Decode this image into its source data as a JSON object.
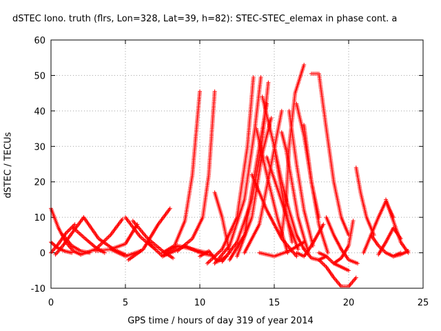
{
  "chart_data": {
    "type": "scatter",
    "title": "dSTEC Iono. truth (flrs, Lon=328, Lat=39, h=82): STEC-STEC_elemax in phase cont. a",
    "xlabel": "GPS time / hours of day 319 of year 2014",
    "ylabel": "dSTEC  / TECUs",
    "xlim": [
      0,
      25
    ],
    "ylim": [
      -10,
      60
    ],
    "xticks": [
      "0",
      "5",
      "10",
      "15",
      "20",
      "25"
    ],
    "yticks": [
      "-10",
      "0",
      "10",
      "20",
      "30",
      "40",
      "50",
      "60"
    ],
    "grid": true,
    "marker": "+",
    "color": "#ff0000",
    "series": [
      {
        "x": [
          0.0,
          0.5,
          1.0,
          1.5,
          2.0
        ],
        "y": [
          12.5,
          7,
          3,
          0.5,
          -0.5
        ]
      },
      {
        "x": [
          0.0,
          0.4,
          0.9,
          1.4
        ],
        "y": [
          3,
          1.5,
          0.5,
          0
        ]
      },
      {
        "x": [
          0.0,
          0.5,
          1.0,
          1.6
        ],
        "y": [
          0,
          2.5,
          5.5,
          8
        ]
      },
      {
        "x": [
          0.3,
          0.8,
          1.4,
          2.2
        ],
        "y": [
          -0.5,
          2,
          5.5,
          10
        ]
      },
      {
        "x": [
          0.8,
          1.4,
          2.0,
          2.6
        ],
        "y": [
          5,
          2,
          0.5,
          0
        ]
      },
      {
        "x": [
          1.5,
          2.3,
          3.0,
          3.6
        ],
        "y": [
          7,
          4,
          1.5,
          0
        ]
      },
      {
        "x": [
          2.0,
          3.0,
          4.0,
          4.8
        ],
        "y": [
          -0.5,
          1,
          5,
          9.5
        ]
      },
      {
        "x": [
          2.2,
          3.2,
          4.2,
          5.0
        ],
        "y": [
          10,
          4,
          1,
          -0.5
        ]
      },
      {
        "x": [
          3.0,
          4.0,
          5.0,
          5.8
        ],
        "y": [
          0.5,
          1,
          2.5,
          8
        ]
      },
      {
        "x": [
          4.0,
          5.0,
          6.0
        ],
        "y": [
          1,
          -1,
          0.5
        ]
      },
      {
        "x": [
          5.0,
          6.0,
          7.0
        ],
        "y": [
          10,
          4.5,
          1
        ]
      },
      {
        "x": [
          5.2,
          6.2,
          7.2,
          8.0
        ],
        "y": [
          -2,
          1,
          8,
          12.5
        ]
      },
      {
        "x": [
          5.5,
          6.5,
          7.5,
          8.2
        ],
        "y": [
          9,
          4,
          0.5,
          -1.5
        ]
      },
      {
        "x": [
          6.5,
          7.5,
          8.3,
          9.0
        ],
        "y": [
          3,
          -1,
          0.5,
          2
        ]
      },
      {
        "x": [
          7.5,
          8.3,
          9.0,
          9.5,
          10.0
        ],
        "y": [
          0,
          2,
          9,
          22,
          45.5
        ]
      },
      {
        "x": [
          7.5,
          8.5,
          9.5,
          10.5
        ],
        "y": [
          -1,
          2,
          1,
          0
        ]
      },
      {
        "x": [
          8.5,
          9.5,
          10.2,
          10.6,
          11.0
        ],
        "y": [
          0.5,
          4,
          10,
          22,
          45.5
        ]
      },
      {
        "x": [
          9.0,
          10.0,
          11.0
        ],
        "y": [
          2,
          0,
          -1
        ]
      },
      {
        "x": [
          10.0,
          10.6,
          11.2,
          11.8
        ],
        "y": [
          -1,
          0.5,
          -2.5,
          -1
        ]
      },
      {
        "x": [
          11.0,
          11.5,
          12.0
        ],
        "y": [
          17,
          10,
          0
        ]
      },
      {
        "x": [
          10.5,
          11.5,
          12.5,
          13.2,
          13.6
        ],
        "y": [
          -3,
          1,
          10,
          30,
          49.5
        ]
      },
      {
        "x": [
          11.0,
          12.0,
          13.0,
          13.7,
          14.1
        ],
        "y": [
          -3,
          2,
          15,
          35,
          49.5
        ]
      },
      {
        "x": [
          11.5,
          12.5,
          13.5,
          14.2,
          14.6
        ],
        "y": [
          -2.5,
          3,
          15,
          32,
          48
        ]
      },
      {
        "x": [
          12.0,
          13.0,
          13.8,
          14.5
        ],
        "y": [
          -2,
          5,
          25,
          42
        ]
      },
      {
        "x": [
          12.5,
          13.5,
          14.2,
          14.8
        ],
        "y": [
          -1,
          10,
          28,
          38
        ]
      },
      {
        "x": [
          13.0,
          14.0,
          14.8,
          15.5
        ],
        "y": [
          0,
          8,
          25,
          40
        ]
      },
      {
        "x": [
          13.8,
          14.5,
          15.2,
          15.9
        ],
        "y": [
          35,
          22,
          10,
          0
        ]
      },
      {
        "x": [
          14.2,
          15.0,
          15.6,
          16.2
        ],
        "y": [
          44,
          30,
          15,
          3
        ]
      },
      {
        "x": [
          14.5,
          15.3,
          16.0,
          16.6
        ],
        "y": [
          27,
          17,
          8,
          1
        ]
      },
      {
        "x": [
          13.5,
          14.5,
          15.5,
          16.5
        ],
        "y": [
          22,
          12,
          4,
          -1
        ]
      },
      {
        "x": [
          14.0,
          15.0,
          16.0,
          17.0
        ],
        "y": [
          0,
          -1,
          0.5,
          3
        ]
      },
      {
        "x": [
          15.0,
          15.5,
          16.0,
          16.5,
          17.0
        ],
        "y": [
          30,
          20,
          12,
          5,
          1
        ]
      },
      {
        "x": [
          15.5,
          15.8,
          16.1,
          16.6,
          17.3
        ],
        "y": [
          34,
          29,
          22,
          10,
          0
        ]
      },
      {
        "x": [
          15.5,
          15.8,
          16.0,
          16.4,
          17.0
        ],
        "y": [
          5,
          15,
          30,
          45,
          53
        ]
      },
      {
        "x": [
          16.0,
          16.5,
          17.0,
          17.6
        ],
        "y": [
          40,
          25,
          12,
          2
        ]
      },
      {
        "x": [
          16.5,
          17.0,
          17.5,
          18.0
        ],
        "y": [
          42,
          33,
          20,
          10
        ]
      },
      {
        "x": [
          16.5,
          17.0,
          17.5,
          18.3
        ],
        "y": [
          0,
          -1,
          2,
          8
        ]
      },
      {
        "x": [
          17.0,
          17.5,
          18.0,
          18.6
        ],
        "y": [
          36,
          20,
          8,
          0
        ]
      },
      {
        "x": [
          17.0,
          17.5,
          18.0,
          18.5
        ],
        "y": [
          1,
          -1.5,
          -2,
          -1
        ]
      },
      {
        "x": [
          17.5,
          18.0,
          18.5,
          19.0,
          19.5,
          20.0
        ],
        "y": [
          50.5,
          50.5,
          35,
          20,
          10,
          5
        ]
      },
      {
        "x": [
          18.0,
          18.5,
          19.0,
          19.5,
          20.0
        ],
        "y": [
          0,
          -1,
          -3,
          -4,
          -5
        ]
      },
      {
        "x": [
          18.0,
          18.5,
          19.0,
          19.5,
          20.0,
          20.5
        ],
        "y": [
          -2,
          -4,
          -7,
          -9.5,
          -9.5,
          -7
        ]
      },
      {
        "x": [
          18.5,
          19.0,
          19.5,
          20.0,
          20.6
        ],
        "y": [
          10,
          5,
          1,
          -2,
          -3
        ]
      },
      {
        "x": [
          19.0,
          19.5,
          20.0,
          20.3
        ],
        "y": [
          -3,
          -1.5,
          2,
          9
        ]
      },
      {
        "x": [
          20.5,
          20.8,
          21.2,
          21.7
        ],
        "y": [
          24,
          17,
          10,
          5
        ]
      },
      {
        "x": [
          21.0,
          21.5,
          22.0,
          22.5,
          23.0
        ],
        "y": [
          0,
          5,
          10,
          14.5,
          10
        ]
      },
      {
        "x": [
          21.5,
          22.0,
          22.5,
          23.0,
          23.5
        ],
        "y": [
          5,
          2,
          0,
          -1,
          0
        ]
      },
      {
        "x": [
          22.5,
          23.0,
          23.5,
          24.0
        ],
        "y": [
          15,
          9,
          3,
          0
        ]
      },
      {
        "x": [
          22.0,
          22.5,
          23.0,
          23.5
        ],
        "y": [
          -0.5,
          3,
          7,
          4
        ]
      },
      {
        "x": [
          23.0,
          23.5,
          24.0
        ],
        "y": [
          -1,
          -0.5,
          0.5
        ]
      }
    ]
  }
}
